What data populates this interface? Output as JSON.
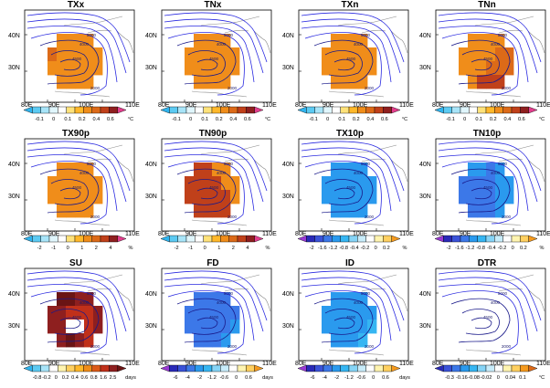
{
  "figure": {
    "lat_labels": [
      "40N",
      "30N"
    ],
    "lon_labels": [
      "80E",
      "90E",
      "100E",
      "110E"
    ],
    "contour_labels": [
      "2000",
      "4000",
      "4500",
      "5000"
    ],
    "panels": [
      {
        "title": "TXx",
        "cells": [
          [
            -1,
            3,
            3,
            3,
            3,
            -1
          ],
          [
            4,
            3,
            3,
            3,
            3,
            3
          ],
          [
            3,
            3,
            3,
            3,
            3,
            3
          ],
          [
            -1,
            3,
            3,
            3,
            3,
            -1
          ]
        ],
        "colorbar": {
          "labels": [
            "-0.1",
            "0",
            "0.1",
            "0.2",
            "0.4",
            "0.6"
          ],
          "unit": "°C",
          "colors": [
            "#2fb4ef",
            "#5ccaf2",
            "#a8e4f8",
            "#e0f6fc",
            "#ffffff",
            "#ffe27a",
            "#ffb82a",
            "#f08d1a",
            "#dc6a18",
            "#c0401a",
            "#8e1f1f",
            "#e23e8d"
          ]
        }
      },
      {
        "title": "TNx",
        "cells": [
          [
            -1,
            3,
            3,
            3,
            3,
            -1
          ],
          [
            3,
            3,
            3,
            3,
            3,
            3
          ],
          [
            3,
            3,
            3,
            3,
            3,
            3
          ],
          [
            -1,
            3,
            3,
            3,
            3,
            -1
          ]
        ],
        "colorbar": {
          "labels": [
            "-0.1",
            "0",
            "0.1",
            "0.2",
            "0.4",
            "0.6"
          ],
          "unit": "°C",
          "colors": [
            "#2fb4ef",
            "#5ccaf2",
            "#a8e4f8",
            "#e0f6fc",
            "#ffffff",
            "#ffe27a",
            "#ffb82a",
            "#f08d1a",
            "#dc6a18",
            "#c0401a",
            "#8e1f1f",
            "#e23e8d"
          ]
        }
      },
      {
        "title": "TXn",
        "cells": [
          [
            -1,
            3,
            3,
            3,
            3,
            -1
          ],
          [
            3,
            3,
            3,
            3,
            3,
            3
          ],
          [
            3,
            3,
            3,
            3,
            3,
            3
          ],
          [
            -1,
            3,
            3,
            3,
            3,
            -1
          ]
        ],
        "colorbar": {
          "labels": [
            "-0.1",
            "0",
            "0.1",
            "0.2",
            "0.4",
            "0.6"
          ],
          "unit": "°C",
          "colors": [
            "#2fb4ef",
            "#5ccaf2",
            "#a8e4f8",
            "#e0f6fc",
            "#ffffff",
            "#ffe27a",
            "#ffb82a",
            "#f08d1a",
            "#dc6a18",
            "#c0401a",
            "#8e1f1f",
            "#e23e8d"
          ]
        }
      },
      {
        "title": "TNn",
        "cells": [
          [
            -1,
            3,
            3,
            3,
            3,
            -1
          ],
          [
            3,
            3,
            3,
            3,
            4,
            4
          ],
          [
            3,
            3,
            3,
            4,
            4,
            4
          ],
          [
            -1,
            3,
            5,
            5,
            5,
            -1
          ]
        ],
        "colorbar": {
          "labels": [
            "-0.1",
            "0",
            "0.1",
            "0.2",
            "0.4",
            "0.6"
          ],
          "unit": "°C",
          "colors": [
            "#2fb4ef",
            "#5ccaf2",
            "#a8e4f8",
            "#e0f6fc",
            "#ffffff",
            "#ffe27a",
            "#ffb82a",
            "#f08d1a",
            "#dc6a18",
            "#c0401a",
            "#8e1f1f",
            "#e23e8d"
          ]
        }
      },
      {
        "title": "TX90p",
        "cells": [
          [
            -1,
            3,
            3,
            3,
            3,
            -1
          ],
          [
            3,
            3,
            3,
            3,
            3,
            3
          ],
          [
            3,
            3,
            3,
            3,
            3,
            3
          ],
          [
            -1,
            3,
            3,
            3,
            3,
            -1
          ]
        ],
        "colorbar": {
          "labels": [
            "-2",
            "-1",
            "0",
            "1",
            "2",
            "4"
          ],
          "unit": "%",
          "colors": [
            "#2fb4ef",
            "#5ccaf2",
            "#a8e4f8",
            "#e0f6fc",
            "#ffffff",
            "#ffe27a",
            "#ffb82a",
            "#f08d1a",
            "#dc6a18",
            "#c0401a",
            "#8e1f1f",
            "#e23e8d"
          ]
        }
      },
      {
        "title": "TN90p",
        "cells": [
          [
            -1,
            5,
            5,
            3,
            3,
            -1
          ],
          [
            5,
            5,
            5,
            5,
            3,
            3
          ],
          [
            5,
            5,
            5,
            5,
            5,
            3
          ],
          [
            -1,
            5,
            5,
            5,
            5,
            -1
          ]
        ],
        "colorbar": {
          "labels": [
            "-2",
            "-1",
            "0",
            "1",
            "2",
            "4"
          ],
          "unit": "%",
          "colors": [
            "#2fb4ef",
            "#5ccaf2",
            "#a8e4f8",
            "#e0f6fc",
            "#ffffff",
            "#ffe27a",
            "#ffb82a",
            "#f08d1a",
            "#dc6a18",
            "#c0401a",
            "#8e1f1f",
            "#e23e8d"
          ]
        }
      },
      {
        "title": "TX10p",
        "cells": [
          [
            -1,
            4,
            4,
            4,
            4,
            -1
          ],
          [
            4,
            4,
            4,
            4,
            4,
            4
          ],
          [
            4,
            4,
            4,
            4,
            4,
            4
          ],
          [
            -1,
            4,
            4,
            4,
            4,
            -1
          ]
        ],
        "colorbar": {
          "labels": [
            "-2",
            "-1.6",
            "-1.2",
            "-0.8",
            "-0.4",
            "-0.2",
            "0",
            "0.2"
          ],
          "unit": "%",
          "colors": [
            "#9a3ad4",
            "#2a2ab8",
            "#3a52d8",
            "#3c78e8",
            "#2a9aee",
            "#36b6f2",
            "#86d4f6",
            "#c8ecfa",
            "#ffffff",
            "#fff4b0",
            "#ffd060",
            "#f59a1e"
          ]
        }
      },
      {
        "title": "TN10p",
        "cells": [
          [
            -1,
            4,
            4,
            3,
            4,
            -1
          ],
          [
            3,
            3,
            3,
            3,
            4,
            4
          ],
          [
            3,
            3,
            3,
            3,
            4,
            4
          ],
          [
            -1,
            3,
            3,
            3,
            4,
            -1
          ]
        ],
        "colorbar": {
          "labels": [
            "-2",
            "-1.6",
            "-1.2",
            "-0.8",
            "-0.4",
            "-0.2",
            "0",
            "0.2"
          ],
          "unit": "%",
          "colors": [
            "#9a3ad4",
            "#2a2ab8",
            "#3a52d8",
            "#3c78e8",
            "#2a9aee",
            "#36b6f2",
            "#86d4f6",
            "#c8ecfa",
            "#ffffff",
            "#fff4b0",
            "#ffd060",
            "#f59a1e"
          ]
        }
      },
      {
        "title": "SU",
        "cells": [
          [
            -1,
            8,
            7,
            6,
            6,
            -1
          ],
          [
            6,
            6,
            5,
            5,
            5,
            6
          ],
          [
            6,
            6,
            4,
            4,
            5,
            6
          ],
          [
            -1,
            6,
            9,
            6,
            5,
            -1
          ]
        ],
        "colorbar": {
          "labels": [
            "-0.8",
            "-0.2",
            "0",
            "0.2",
            "0.4",
            "0.6",
            "0.8",
            "1.6",
            "2.5"
          ],
          "unit": "days",
          "colors": [
            "#2fb4ef",
            "#5ccaf2",
            "#a8e4f8",
            "#ffffff",
            "#fff4b0",
            "#ffd060",
            "#ffb82a",
            "#f08d1a",
            "#dc5a18",
            "#c0301a",
            "#8e1f1f",
            "#6a1414"
          ]
        }
      },
      {
        "title": "FD",
        "cells": [
          [
            -1,
            3,
            3,
            3,
            3,
            -1
          ],
          [
            3,
            3,
            3,
            3,
            3,
            3
          ],
          [
            3,
            3,
            3,
            3,
            3,
            4
          ],
          [
            -1,
            3,
            3,
            3,
            4,
            -1
          ]
        ],
        "colorbar": {
          "labels": [
            "-6",
            "-4",
            "-2",
            "-1.2",
            "-0.6",
            "0",
            "0.6"
          ],
          "unit": "days",
          "colors": [
            "#9a3ad4",
            "#2a2ab8",
            "#3a52d8",
            "#3c78e8",
            "#2a9aee",
            "#36b6f2",
            "#86d4f6",
            "#c8ecfa",
            "#ffffff",
            "#fff4b0",
            "#ffd060",
            "#f59a1e"
          ]
        }
      },
      {
        "title": "ID",
        "cells": [
          [
            -1,
            4,
            4,
            4,
            4,
            -1
          ],
          [
            4,
            4,
            4,
            4,
            4,
            4
          ],
          [
            4,
            4,
            4,
            4,
            4,
            5
          ],
          [
            -1,
            4,
            4,
            4,
            5,
            -1
          ]
        ],
        "colorbar": {
          "labels": [
            "-6",
            "-4",
            "-2",
            "-1.2",
            "-0.6",
            "0",
            "0.6"
          ],
          "unit": "days",
          "colors": [
            "#9a3ad4",
            "#2a2ab8",
            "#3a52d8",
            "#3c78e8",
            "#2a9aee",
            "#36b6f2",
            "#86d4f6",
            "#c8ecfa",
            "#ffffff",
            "#fff4b0",
            "#ffd060",
            "#f59a1e"
          ]
        }
      },
      {
        "title": "DTR",
        "cells": [
          [
            -1,
            7,
            7,
            7,
            7,
            -1
          ],
          [
            7,
            7,
            7,
            7,
            7,
            7
          ],
          [
            7,
            7,
            7,
            7,
            7,
            7
          ],
          [
            -1,
            7,
            7,
            7,
            7,
            -1
          ]
        ],
        "colorbar": {
          "labels": [
            "-0.3",
            "-0.16",
            "-0.08",
            "-0.02",
            "0",
            "0.04",
            "0.1"
          ],
          "unit": "°C",
          "colors": [
            "#2a2ab8",
            "#3a52d8",
            "#3c78e8",
            "#2a9aee",
            "#36b6f2",
            "#86d4f6",
            "#c8ecfa",
            "#ffffff",
            "#fff4b0",
            "#ffd060",
            "#f59a1e",
            "#dc6a18"
          ]
        }
      }
    ]
  }
}
